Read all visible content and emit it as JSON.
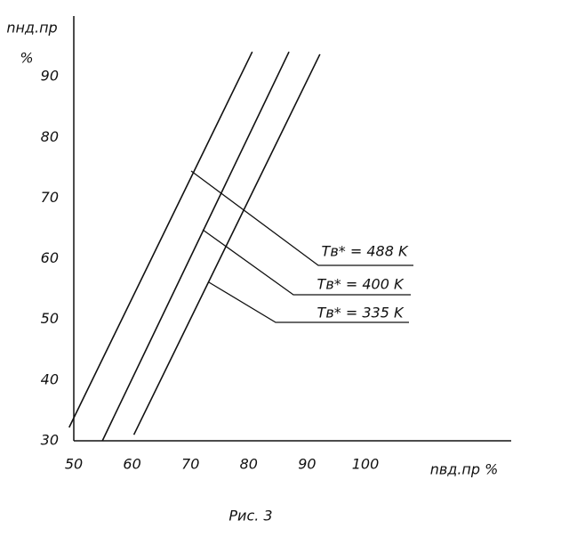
{
  "chart_data": {
    "type": "line",
    "caption": "Рис. 3",
    "x_label": "nвд.пр %",
    "y_label": "nнд.пр",
    "y_label_unit": "%",
    "xlim": [
      50,
      125
    ],
    "ylim": [
      30,
      100
    ],
    "xticks": [
      50,
      60,
      70,
      80,
      90,
      100
    ],
    "yticks": [
      30,
      40,
      50,
      60,
      70,
      80,
      90
    ],
    "grid": false,
    "series": [
      {
        "name": "Tв* = 488 K",
        "color": "#111111",
        "x": [
          49.2,
          80.6
        ],
        "values": [
          32.2,
          94.1
        ]
      },
      {
        "name": "Tв* = 400 K",
        "color": "#111111",
        "x": [
          54.9,
          86.9
        ],
        "values": [
          30,
          94.1
        ]
      },
      {
        "name": "Tв* = 335 K",
        "color": "#111111",
        "x": [
          60.3,
          92.2
        ],
        "values": [
          31.0,
          93.7
        ]
      }
    ]
  }
}
